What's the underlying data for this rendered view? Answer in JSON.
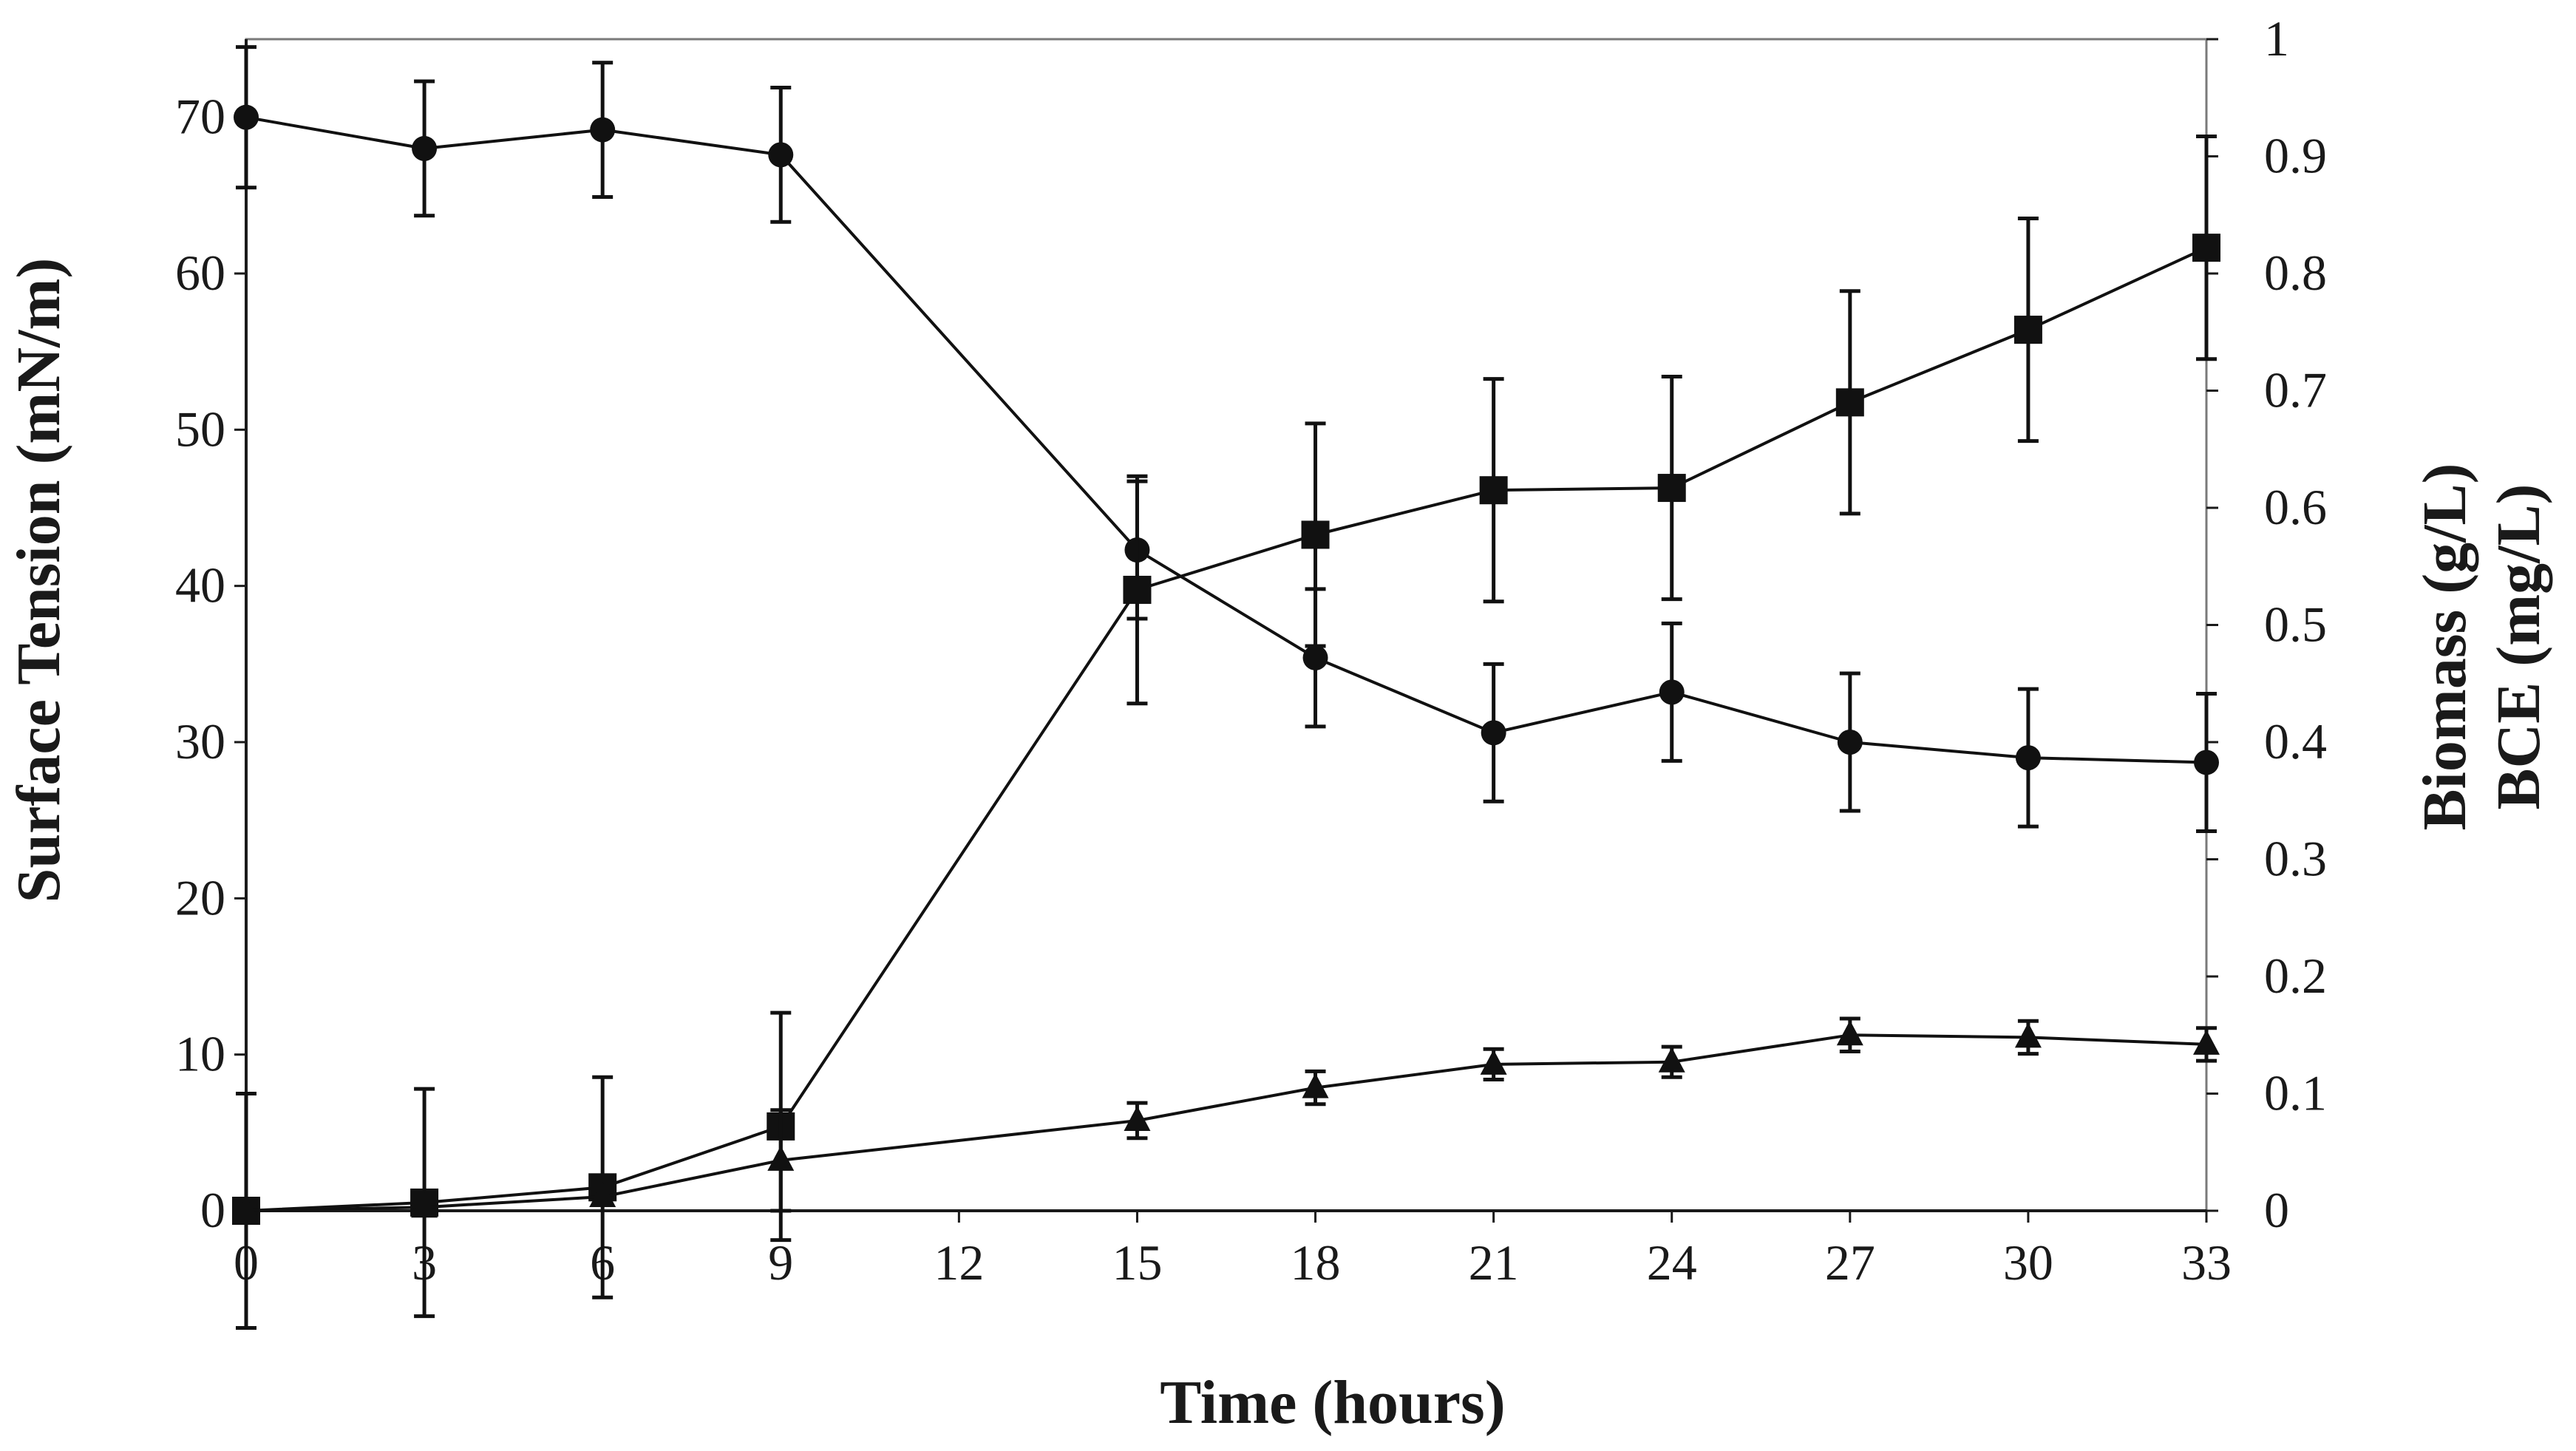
{
  "chart_data": {
    "type": "line",
    "title": "",
    "xlabel": "Time (hours)",
    "ylabel": "Surface Tension (mN/m)",
    "y2label_line1": "Biomass (g/L)",
    "y2label_line2": "BCE (mg/L)",
    "x": [
      0,
      3,
      6,
      9,
      15,
      18,
      21,
      24,
      27,
      30,
      33
    ],
    "xticks": [
      "0",
      "3",
      "6",
      "9",
      "12",
      "15",
      "18",
      "21",
      "24",
      "27",
      "30",
      "33"
    ],
    "xtick_values": [
      0,
      3,
      6,
      9,
      12,
      15,
      18,
      21,
      24,
      27,
      30,
      33
    ],
    "xlim": [
      0,
      33
    ],
    "ylim": [
      0,
      75
    ],
    "yticks": [
      "0",
      "10",
      "20",
      "30",
      "40",
      "50",
      "60",
      "70"
    ],
    "ytick_values": [
      0,
      10,
      20,
      30,
      40,
      50,
      60,
      70
    ],
    "y2lim": [
      0,
      1
    ],
    "y2ticks": [
      "0",
      "0.1",
      "0.2",
      "0.3",
      "0.4",
      "0.5",
      "0.6",
      "0.7",
      "0.8",
      "0.9",
      "1"
    ],
    "y2tick_values": [
      0,
      0.1,
      0.2,
      0.3,
      0.4,
      0.5,
      0.6,
      0.7,
      0.8,
      0.9,
      1
    ],
    "grid": false,
    "series": [
      {
        "name": "Surface Tension",
        "marker": "circle",
        "axis": "left",
        "values": [
          70,
          68,
          69.2,
          67.6,
          42.3,
          35.4,
          30.6,
          33.2,
          30,
          29,
          28.7
        ],
        "errors": [
          4.5,
          4.3,
          4.3,
          4.3,
          4.4,
          4.4,
          4.4,
          4.4,
          4.4,
          4.4,
          4.4
        ]
      },
      {
        "name": "Biomass",
        "marker": "square",
        "axis": "right",
        "values": [
          0,
          0.007,
          0.02,
          0.072,
          0.53,
          0.577,
          0.615,
          0.617,
          0.69,
          0.752,
          0.822
        ],
        "errors": [
          0.1,
          0.097,
          0.094,
          0.097,
          0.097,
          0.095,
          0.095,
          0.095,
          0.095,
          0.095,
          0.095
        ]
      },
      {
        "name": "BCE",
        "marker": "triangle",
        "axis": "right",
        "values": [
          0,
          0.003,
          0.012,
          0.043,
          0.077,
          0.105,
          0.125,
          0.127,
          0.15,
          0.148,
          0.142
        ],
        "errors": [
          0,
          0,
          0,
          0.043,
          0.015,
          0.014,
          0.013,
          0.013,
          0.014,
          0.014,
          0.014
        ]
      }
    ]
  }
}
